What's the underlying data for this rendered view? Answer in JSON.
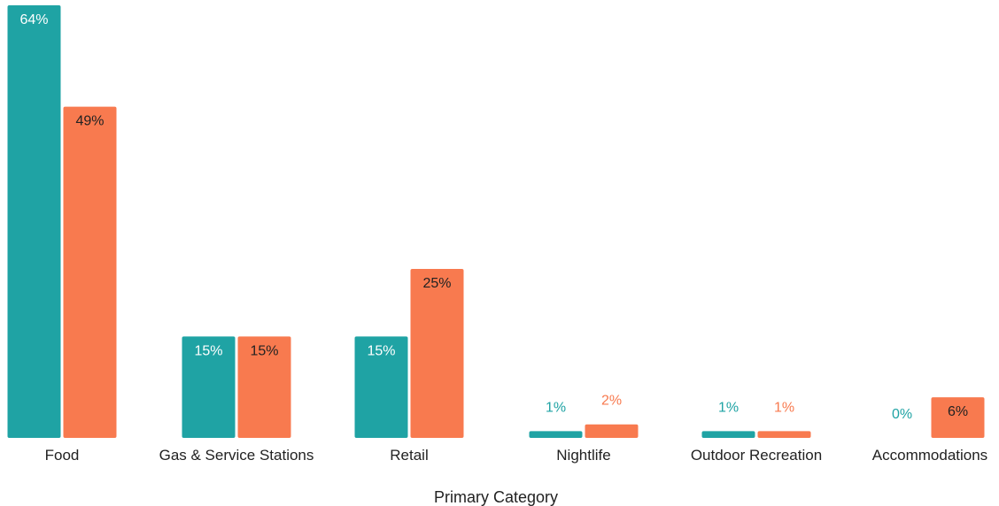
{
  "chart_data": {
    "type": "bar",
    "categories": [
      "Food",
      "Gas & Service Stations",
      "Retail",
      "Nightlife",
      "Outdoor Recreation",
      "Accommodations"
    ],
    "series": [
      {
        "values": [
          64,
          15,
          15,
          1,
          1,
          0
        ],
        "labels": [
          "64%",
          "15%",
          "15%",
          "1%",
          "1%",
          "0%"
        ],
        "color": "#1fa3a4"
      },
      {
        "values": [
          49,
          15,
          25,
          2,
          1,
          6
        ],
        "labels": [
          "49%",
          "15%",
          "25%",
          "2%",
          "1%",
          "6%"
        ],
        "color": "#f87a4f"
      }
    ],
    "xlabel": "Primary Category",
    "ylabel": "",
    "ylim": [
      0,
      64
    ],
    "grid": false,
    "legend": "none",
    "label_inside_color_teal": "#ffffff",
    "label_inside_color_orange": "#222222"
  }
}
